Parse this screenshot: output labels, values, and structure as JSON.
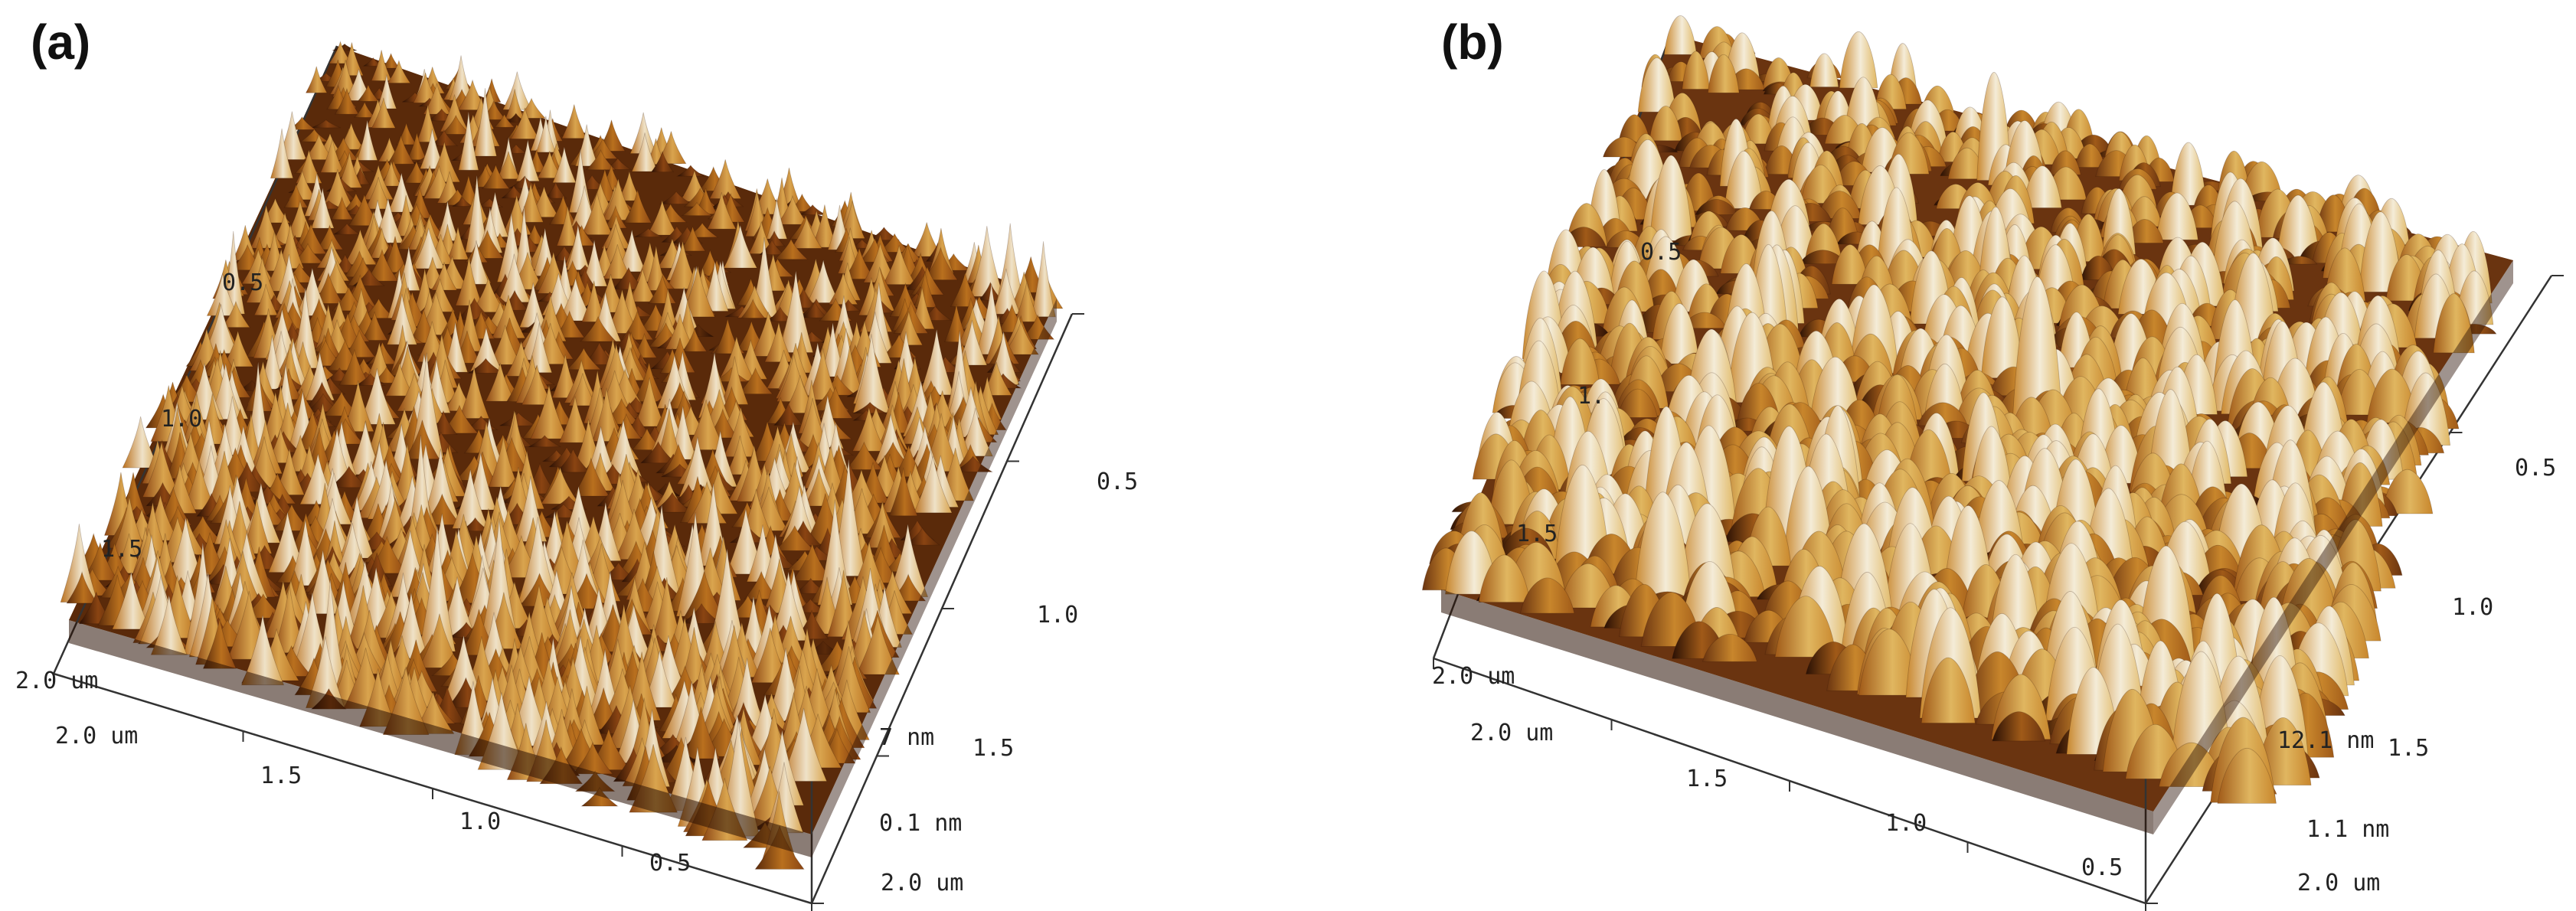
{
  "panels": [
    {
      "id": "a",
      "label": "(a)",
      "back_left_ticks": [
        "0.5",
        "1.0",
        "1.5",
        "2.0 um"
      ],
      "front_axis_ticks": [
        "2.0 um",
        "1.5",
        "1.0",
        "0.5"
      ],
      "right_axis_ticks": [
        "0.5",
        "1.0",
        "1.5",
        "2.0 um"
      ],
      "z_axis_ticks": [
        "7 nm",
        "0.1 nm"
      ],
      "surface": {
        "style": "dense fine conical peaks",
        "colors": [
          "#2a1004",
          "#5a2a0a",
          "#8a4412",
          "#b9701e",
          "#d9a44e",
          "#efe2c8"
        ]
      }
    },
    {
      "id": "b",
      "label": "(b)",
      "back_left_ticks": [
        "0.5",
        "1.",
        "1.5",
        "2.0 um"
      ],
      "front_axis_ticks": [
        "2.0 um",
        "1.5",
        "1.0",
        "0.5"
      ],
      "right_axis_ticks": [
        "0.5",
        "1.0",
        "1.5",
        "2.0 um"
      ],
      "z_axis_ticks": [
        "12.1 nm",
        "1.1 nm"
      ],
      "surface": {
        "style": "coarse rounded mounds with fine texture",
        "colors": [
          "#2a1004",
          "#6a3410",
          "#a05a18",
          "#c8862c",
          "#e0b660",
          "#f4ecd8"
        ]
      }
    }
  ]
}
